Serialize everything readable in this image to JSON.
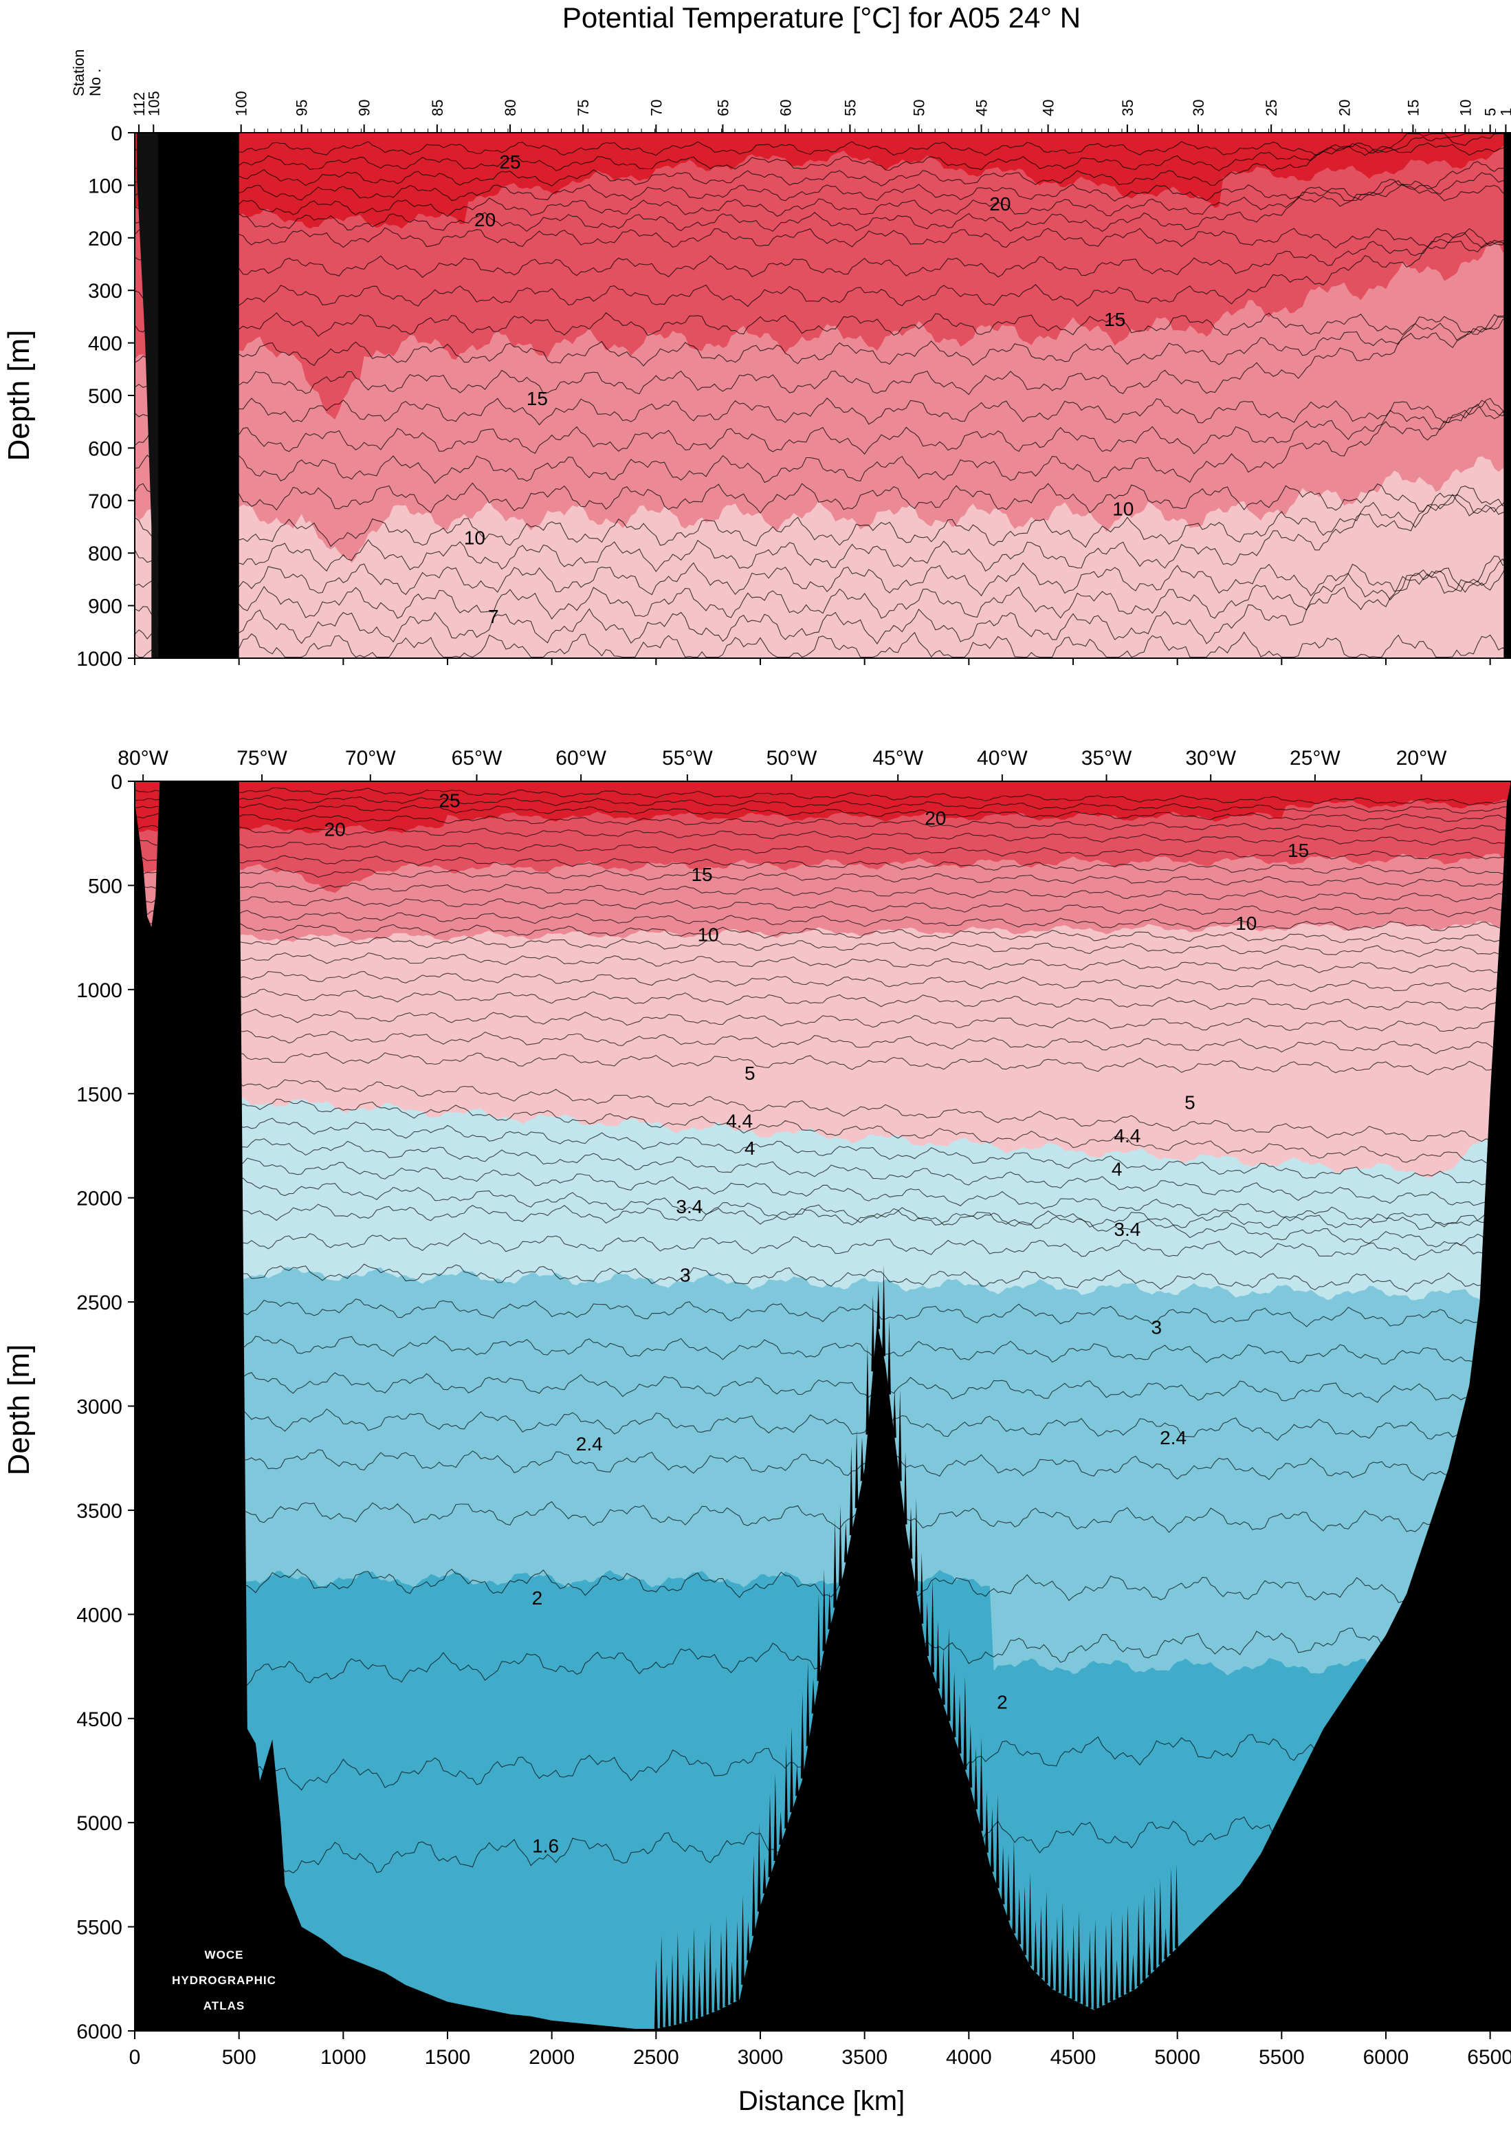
{
  "title": "Potential Temperature [°C] for A05 24° N",
  "watermark": [
    "WOCE",
    "HYDROGRAPHIC",
    "ATLAS"
  ],
  "chart_data": [
    {
      "type": "contour-section",
      "panel": "upper",
      "title": "Potential Temperature [°C] for A05 24° N",
      "xlabel": "",
      "ylabel": "Depth [m]",
      "xlim": [
        0,
        6600
      ],
      "ylim": [
        1000,
        0
      ],
      "yticks": [
        0,
        100,
        200,
        300,
        400,
        500,
        600,
        700,
        800,
        900,
        1000
      ],
      "station_axis_label": [
        "Station",
        "No ."
      ],
      "station_labels": [
        "112",
        "105",
        "100",
        "95",
        "90",
        "85",
        "80",
        "75",
        "70",
        "65",
        "60",
        "55",
        "50",
        "45",
        "40",
        "35",
        "30",
        "25",
        "20",
        "15",
        "10",
        "5",
        "1"
      ],
      "station_km": [
        20,
        90,
        510,
        800,
        1100,
        1450,
        1800,
        2150,
        2500,
        2820,
        3120,
        3430,
        3760,
        4060,
        4380,
        4760,
        5100,
        5450,
        5800,
        6130,
        6380,
        6500,
        6575
      ],
      "contour_labels": [
        {
          "text": "25",
          "km": 1800,
          "depth": 55
        },
        {
          "text": "20",
          "km": 1680,
          "depth": 165
        },
        {
          "text": "20",
          "km": 4150,
          "depth": 135
        },
        {
          "text": "15",
          "km": 4700,
          "depth": 355
        },
        {
          "text": "15",
          "km": 1930,
          "depth": 505
        },
        {
          "text": "10",
          "km": 4740,
          "depth": 715
        },
        {
          "text": "10",
          "km": 1630,
          "depth": 770
        },
        {
          "text": "7",
          "km": 1720,
          "depth": 920
        }
      ]
    },
    {
      "type": "contour-section",
      "panel": "lower",
      "xlabel": "Distance [km]",
      "ylabel": "Depth [m]",
      "xlim": [
        0,
        6600
      ],
      "ylim": [
        6000,
        0
      ],
      "xticks": [
        0,
        500,
        1000,
        1500,
        2000,
        2500,
        3000,
        3500,
        4000,
        4500,
        5000,
        5500,
        6000,
        6500
      ],
      "yticks": [
        0,
        500,
        1000,
        1500,
        2000,
        2500,
        3000,
        3500,
        4000,
        4500,
        5000,
        5500,
        6000
      ],
      "longitude_labels": [
        "80°W",
        "75°W",
        "70°W",
        "65°W",
        "60°W",
        "55°W",
        "50°W",
        "45°W",
        "40°W",
        "35°W",
        "30°W",
        "25°W",
        "20°W"
      ],
      "longitude_km": [
        40,
        610,
        1130,
        1640,
        2140,
        2650,
        3150,
        3660,
        4160,
        4660,
        5160,
        5660,
        6170
      ],
      "color_bands_degC": [
        {
          "range": "> 20",
          "color": "#da1e2c"
        },
        {
          "range": "15-20",
          "color": "#e35060"
        },
        {
          "range": "10-15",
          "color": "#eb8a94"
        },
        {
          "range": "5-10",
          "color": "#f5c4c8"
        },
        {
          "range": "3-5",
          "color": "#c2e5ed"
        },
        {
          "range": "2-3",
          "color": "#7fc8dc"
        },
        {
          "range": "< 2",
          "color": "#40acca"
        }
      ],
      "contour_labels": [
        {
          "text": "25",
          "km": 1510,
          "depth": 90
        },
        {
          "text": "20",
          "km": 960,
          "depth": 230
        },
        {
          "text": "20",
          "km": 3840,
          "depth": 175
        },
        {
          "text": "15",
          "km": 2720,
          "depth": 445
        },
        {
          "text": "15",
          "km": 5580,
          "depth": 330
        },
        {
          "text": "10",
          "km": 2750,
          "depth": 735
        },
        {
          "text": "10",
          "km": 5330,
          "depth": 680
        },
        {
          "text": "5",
          "km": 2950,
          "depth": 1400
        },
        {
          "text": "5",
          "km": 5060,
          "depth": 1540
        },
        {
          "text": "4.4",
          "km": 2900,
          "depth": 1630
        },
        {
          "text": "4.4",
          "km": 4760,
          "depth": 1700
        },
        {
          "text": "4",
          "km": 2950,
          "depth": 1760
        },
        {
          "text": "4",
          "km": 4710,
          "depth": 1860
        },
        {
          "text": "3.4",
          "km": 2660,
          "depth": 2040
        },
        {
          "text": "3.4",
          "km": 4760,
          "depth": 2150
        },
        {
          "text": "3",
          "km": 2640,
          "depth": 2370
        },
        {
          "text": "3",
          "km": 4900,
          "depth": 2620
        },
        {
          "text": "2.4",
          "km": 2180,
          "depth": 3180
        },
        {
          "text": "2.4",
          "km": 4980,
          "depth": 3150
        },
        {
          "text": "2",
          "km": 1930,
          "depth": 3920
        },
        {
          "text": "2",
          "km": 4160,
          "depth": 4420
        },
        {
          "text": "1.6",
          "km": 1970,
          "depth": 5110
        }
      ],
      "bathymetry_km_depth": [
        [
          0,
          100
        ],
        [
          40,
          400
        ],
        [
          60,
          650
        ],
        [
          80,
          700
        ],
        [
          100,
          550
        ],
        [
          120,
          0
        ],
        [
          500,
          0
        ],
        [
          540,
          4550
        ],
        [
          580,
          4620
        ],
        [
          600,
          4800
        ],
        [
          630,
          4700
        ],
        [
          660,
          4600
        ],
        [
          700,
          5000
        ],
        [
          720,
          5300
        ],
        [
          760,
          5400
        ],
        [
          800,
          5500
        ],
        [
          900,
          5560
        ],
        [
          1000,
          5640
        ],
        [
          1100,
          5680
        ],
        [
          1200,
          5720
        ],
        [
          1300,
          5780
        ],
        [
          1400,
          5820
        ],
        [
          1500,
          5860
        ],
        [
          1600,
          5880
        ],
        [
          1700,
          5900
        ],
        [
          1800,
          5920
        ],
        [
          1900,
          5930
        ],
        [
          2000,
          5950
        ],
        [
          2100,
          5960
        ],
        [
          2200,
          5970
        ],
        [
          2300,
          5980
        ],
        [
          2400,
          5990
        ],
        [
          2500,
          5990
        ],
        [
          2600,
          5970
        ],
        [
          2700,
          5940
        ],
        [
          2800,
          5900
        ],
        [
          2900,
          5850
        ],
        [
          3000,
          5400
        ],
        [
          3100,
          5100
        ],
        [
          3200,
          4800
        ],
        [
          3300,
          4200
        ],
        [
          3400,
          3800
        ],
        [
          3500,
          3300
        ],
        [
          3560,
          2600
        ],
        [
          3600,
          2800
        ],
        [
          3650,
          3200
        ],
        [
          3700,
          3600
        ],
        [
          3800,
          4200
        ],
        [
          3900,
          4500
        ],
        [
          4000,
          4800
        ],
        [
          4100,
          5200
        ],
        [
          4200,
          5500
        ],
        [
          4300,
          5700
        ],
        [
          4400,
          5800
        ],
        [
          4500,
          5850
        ],
        [
          4600,
          5900
        ],
        [
          4700,
          5850
        ],
        [
          4800,
          5800
        ],
        [
          4900,
          5700
        ],
        [
          5000,
          5600
        ],
        [
          5100,
          5500
        ],
        [
          5200,
          5400
        ],
        [
          5300,
          5300
        ],
        [
          5400,
          5150
        ],
        [
          5500,
          4950
        ],
        [
          5600,
          4750
        ],
        [
          5700,
          4550
        ],
        [
          5800,
          4400
        ],
        [
          5900,
          4250
        ],
        [
          6000,
          4100
        ],
        [
          6100,
          3900
        ],
        [
          6200,
          3600
        ],
        [
          6300,
          3300
        ],
        [
          6400,
          2900
        ],
        [
          6450,
          2500
        ],
        [
          6500,
          1500
        ],
        [
          6560,
          500
        ],
        [
          6580,
          100
        ],
        [
          6600,
          0
        ]
      ]
    }
  ]
}
